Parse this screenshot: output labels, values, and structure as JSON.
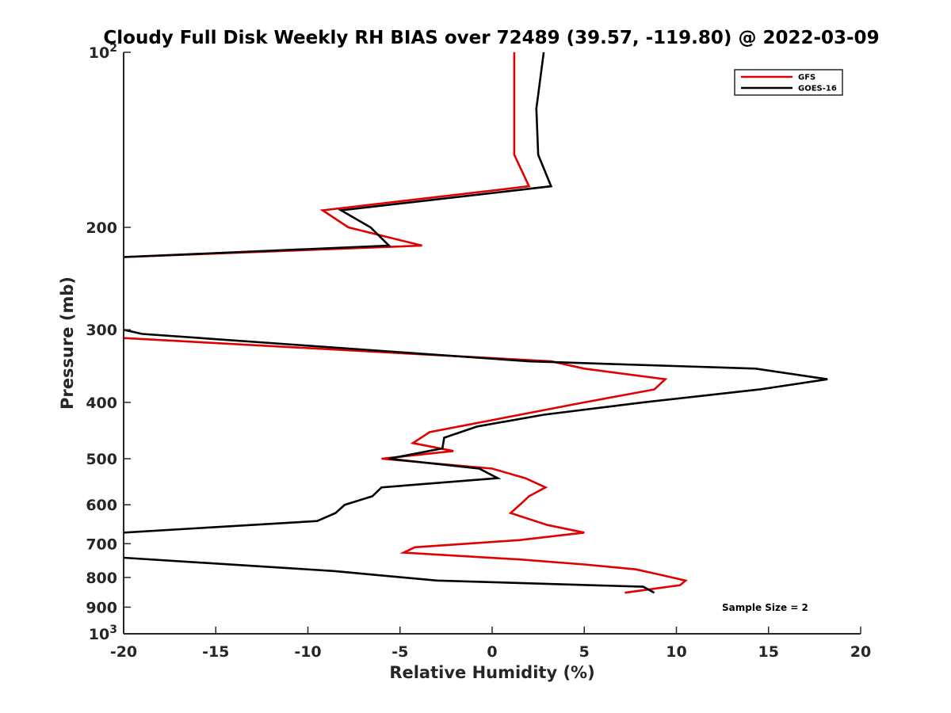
{
  "chart_data": {
    "type": "line",
    "title": "Cloudy Full Disk Weekly RH BIAS over 72489 (39.57, -119.80) @ 2022-03-09",
    "xlabel": "Relative Humidity (%)",
    "ylabel": "Pressure (mb)",
    "xlim": [
      -20,
      20
    ],
    "ylim": [
      100,
      1000
    ],
    "yscale": "log",
    "y_reversed": true,
    "x_ticks": [
      -20,
      -15,
      -10,
      -5,
      0,
      5,
      10,
      15,
      20
    ],
    "x_tick_labels": [
      "-20",
      "-15",
      "-10",
      "-5",
      "0",
      "5",
      "10",
      "15",
      "20"
    ],
    "y_ticks": [
      100,
      200,
      300,
      400,
      500,
      600,
      700,
      800,
      900,
      1000
    ],
    "y_tick_labels": [
      {
        "base": "10",
        "exp": "2"
      },
      {
        "base": "200",
        "exp": ""
      },
      {
        "base": "300",
        "exp": ""
      },
      {
        "base": "400",
        "exp": ""
      },
      {
        "base": "500",
        "exp": ""
      },
      {
        "base": "600",
        "exp": ""
      },
      {
        "base": "700",
        "exp": ""
      },
      {
        "base": "800",
        "exp": ""
      },
      {
        "base": "900",
        "exp": ""
      },
      {
        "base": "10",
        "exp": "3"
      }
    ],
    "grid": false,
    "legend_position": "top-right",
    "annotation": "Sample Size = 2",
    "series": [
      {
        "name": "GFS",
        "color": "#e00000",
        "segments": [
          [
            {
              "x": 1.2,
              "y": 100
            },
            {
              "x": 1.2,
              "y": 125
            },
            {
              "x": 1.2,
              "y": 150
            },
            {
              "x": 2.0,
              "y": 170
            },
            {
              "x": -9.2,
              "y": 187
            },
            {
              "x": -7.8,
              "y": 200
            },
            {
              "x": -3.8,
              "y": 215
            },
            {
              "x": -20,
              "y": 225
            }
          ],
          [
            {
              "x": -20,
              "y": 310
            },
            {
              "x": 3.2,
              "y": 340
            },
            {
              "x": 5.0,
              "y": 350
            },
            {
              "x": 9.4,
              "y": 365
            },
            {
              "x": 8.8,
              "y": 380
            },
            {
              "x": 5.0,
              "y": 400
            },
            {
              "x": -3.4,
              "y": 450
            },
            {
              "x": -4.3,
              "y": 470
            },
            {
              "x": -2.1,
              "y": 485
            },
            {
              "x": -6.0,
              "y": 500
            },
            {
              "x": 0.0,
              "y": 520
            },
            {
              "x": 1.8,
              "y": 540
            },
            {
              "x": 2.9,
              "y": 560
            },
            {
              "x": 2.0,
              "y": 580
            },
            {
              "x": 1.5,
              "y": 600
            },
            {
              "x": 1.0,
              "y": 620
            },
            {
              "x": 3.0,
              "y": 650
            },
            {
              "x": 5.0,
              "y": 670
            },
            {
              "x": 1.5,
              "y": 690
            },
            {
              "x": -4.2,
              "y": 710
            },
            {
              "x": -4.8,
              "y": 725
            },
            {
              "x": 1.5,
              "y": 745
            },
            {
              "x": 5.0,
              "y": 760
            },
            {
              "x": 7.8,
              "y": 775
            },
            {
              "x": 9.0,
              "y": 790
            },
            {
              "x": 10.5,
              "y": 810
            },
            {
              "x": 10.2,
              "y": 825
            },
            {
              "x": 7.2,
              "y": 850
            }
          ]
        ]
      },
      {
        "name": "GOES-16",
        "color": "#000000",
        "segments": [
          [
            {
              "x": 2.8,
              "y": 100
            },
            {
              "x": 2.4,
              "y": 125
            },
            {
              "x": 2.5,
              "y": 150
            },
            {
              "x": 3.2,
              "y": 170
            },
            {
              "x": -8.2,
              "y": 187
            },
            {
              "x": -6.6,
              "y": 200
            },
            {
              "x": -5.6,
              "y": 215
            },
            {
              "x": -20,
              "y": 225
            }
          ],
          [
            {
              "x": -20,
              "y": 300
            },
            {
              "x": -19.0,
              "y": 305
            },
            {
              "x": 2.0,
              "y": 340
            },
            {
              "x": 14.3,
              "y": 350
            },
            {
              "x": 18.2,
              "y": 365
            },
            {
              "x": 14.5,
              "y": 380
            },
            {
              "x": 8.2,
              "y": 400
            },
            {
              "x": 2.8,
              "y": 420
            },
            {
              "x": -0.8,
              "y": 440
            },
            {
              "x": -2.6,
              "y": 460
            },
            {
              "x": -2.7,
              "y": 480
            },
            {
              "x": -5.6,
              "y": 500
            },
            {
              "x": -0.7,
              "y": 520
            },
            {
              "x": 0.3,
              "y": 540
            },
            {
              "x": -6.0,
              "y": 560
            },
            {
              "x": -6.5,
              "y": 580
            },
            {
              "x": -8.0,
              "y": 600
            },
            {
              "x": -8.5,
              "y": 620
            },
            {
              "x": -9.5,
              "y": 640
            },
            {
              "x": -20,
              "y": 670
            }
          ],
          [
            {
              "x": -20,
              "y": 740
            },
            {
              "x": -8.6,
              "y": 780
            },
            {
              "x": -3.0,
              "y": 810
            },
            {
              "x": 8.2,
              "y": 830
            },
            {
              "x": 8.8,
              "y": 850
            }
          ]
        ]
      }
    ]
  }
}
